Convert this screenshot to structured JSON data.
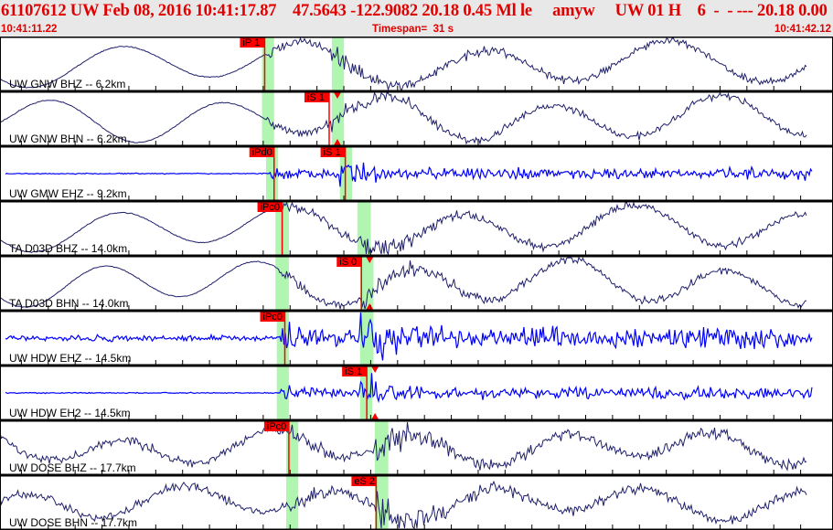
{
  "header": {
    "title": "61107612 UW Feb 08, 2016 10:41:17.87    47.5643 -122.9082 20.18 0.45 Ml le     amyw     UW 01 H    6  -  - --- 20.18 0.00",
    "start_time": "10:41:11.22",
    "timespan": "Timespan=  31 s",
    "end_time": "10:41:42.12"
  },
  "colors": {
    "broadband": "#1f1f6b",
    "short_period": "#0000ff",
    "pick": "#ff0000",
    "window": "#b0f5b0",
    "header_text": "#e00000"
  },
  "timespan_s": 31,
  "traces": [
    {
      "label": "UW GNW BHZ -- 6.2km",
      "type": "BH",
      "picks": [
        {
          "name": "iP 1",
          "t": 9.85
        }
      ],
      "p_window": [
        9.75,
        10.2
      ],
      "s_window": [
        12.35,
        12.8
      ]
    },
    {
      "label": "UW GNW BHN -- 6.2km",
      "type": "BH",
      "picks": [
        {
          "name": "iS 1",
          "t": 12.25,
          "polarity": true
        }
      ],
      "p_window": [
        9.75,
        10.2
      ],
      "s_window": [
        12.35,
        12.8
      ]
    },
    {
      "label": "UW GMW EHZ -- 9.2km",
      "type": "EH",
      "picks": [
        {
          "name": "iPd0",
          "t": 10.2
        },
        {
          "name": "iS 1",
          "t": 12.85
        }
      ],
      "p_window": [
        9.9,
        10.35
      ],
      "s_window": [
        12.65,
        13.1
      ]
    },
    {
      "label": "TA D03D BHZ -- 14.0km",
      "type": "BH",
      "picks": [
        {
          "name": "iPc0",
          "t": 10.5
        }
      ],
      "p_window": [
        10.25,
        10.75
      ],
      "s_window": [
        13.3,
        13.8
      ]
    },
    {
      "label": "TA D03D BHN -- 14.0km",
      "type": "BH",
      "picks": [
        {
          "name": "iS 0",
          "t": 13.45,
          "polarity": true
        }
      ],
      "p_window": [
        10.25,
        10.75
      ],
      "s_window": [
        13.4,
        13.9
      ]
    },
    {
      "label": "UW HDW EHZ -- 14.5km",
      "type": "EH",
      "picks": [
        {
          "name": "iPc0",
          "t": 10.6
        }
      ],
      "p_window": [
        10.3,
        10.75
      ],
      "s_window": [
        13.4,
        13.9
      ]
    },
    {
      "label": "UW HDW EH2 -- 14.5km",
      "type": "EH",
      "picks": [
        {
          "name": "iS 1",
          "t": 13.65,
          "polarity": true
        }
      ],
      "p_window": [
        10.3,
        10.75
      ],
      "s_window": [
        13.4,
        13.85
      ]
    },
    {
      "label": "UW DOSE BHZ -- 17.7km",
      "type": "BH",
      "picks": [
        {
          "name": "iPc0",
          "t": 10.75
        }
      ],
      "p_window": [
        10.65,
        11.1
      ],
      "s_window": [
        13.95,
        14.45
      ]
    },
    {
      "label": "UW DOSE BHN -- 17.7km",
      "type": "BH",
      "picks": [
        {
          "name": "eS 2",
          "t": 14.0
        }
      ],
      "p_window": [
        10.65,
        11.1
      ],
      "s_window": [
        13.95,
        14.45
      ]
    }
  ]
}
